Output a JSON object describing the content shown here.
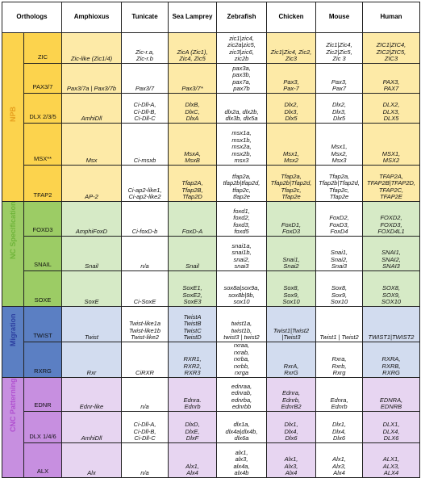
{
  "colors": {
    "npb_cat": "#fcd34d",
    "npb_row": "#fdeaa7",
    "nc_cat": "#9ccc65",
    "nc_row": "#d6eac6",
    "mig_cat": "#5b7fc3",
    "mig_row": "#d2dcef",
    "cnc_cat": "#c78fe0",
    "cnc_row": "#e7d5f1",
    "stripe": "#d9dff0",
    "npb_text": "#e6a020",
    "nc_text": "#6fb43a",
    "mig_text": "#2c3fa0",
    "cnc_text": "#b050d0"
  },
  "headers": [
    "Orthologs",
    "Amphioxus",
    "Tunicate",
    "Sea Lamprey",
    "Zebrafish",
    "Chicken",
    "Mouse",
    "Human"
  ],
  "categories": {
    "npb": "NPB",
    "nc": "NC Specification",
    "mig": "Migration",
    "cnc": "CNC Patterning"
  },
  "rows": [
    {
      "gene": "ZIC",
      "cells": [
        [
          "Zic-like (Zic1/4)"
        ],
        [
          "Zic-r.a,",
          "Zic-r.b"
        ],
        [
          "ZicA (Zic1),",
          "Zic4, Zic5"
        ],
        [
          "zic1|zic4,",
          "zic2a|zic5,",
          "zic3|zic6,",
          "zic2b"
        ],
        [
          "Zic1|Zic4, Zic2,",
          "Zic3"
        ],
        [
          "Zic1|Zic4,",
          "Zic2|Zic5,",
          "Zic 3"
        ],
        [
          "ZIC1|ZIC4,",
          "ZIC2|ZIC5,",
          "ZIC3"
        ]
      ]
    },
    {
      "gene": "PAX3/7",
      "cells": [
        [
          "Pax3/7a | Pax3/7b"
        ],
        [
          "Pax3/7"
        ],
        [
          "Pax3/7*"
        ],
        [
          "pax3a,",
          "pax3b,",
          "pax7a,",
          "pax7b"
        ],
        [
          "Pax3,",
          "Pax-7"
        ],
        [
          "Pax3,",
          "Pax7"
        ],
        [
          "PAX3,",
          "PAX7"
        ]
      ]
    },
    {
      "gene": "DLX 2/3/5",
      "cells": [
        [
          "AmhiDll"
        ],
        [
          "Ci-Dll-A,",
          "Ci-Dll-B,",
          "Ci-Dll-C"
        ],
        [
          "DlxB,",
          "DlxC,",
          "DlxA"
        ],
        [
          "dlx2a, dlx2b,",
          "dlx3b, dlx5a"
        ],
        [
          "Dlx2,",
          "Dlx3,",
          "Dlx5"
        ],
        [
          "Dlx2,",
          "Dlx3,",
          "Dlx5"
        ],
        [
          "DLX2,",
          "DLX3,",
          "DLX5"
        ]
      ]
    },
    {
      "gene": "MSX**",
      "cells": [
        [
          "Msx"
        ],
        [
          "Ci-msxb"
        ],
        [
          "MsxA,",
          "MsxB"
        ],
        [
          "msx1a,",
          "msx1b,",
          "msx2a,",
          "msx2b,",
          "msx3"
        ],
        [
          "Msx1,",
          "Msx2"
        ],
        [
          "Msx1,",
          "Msx2,",
          "Msx3"
        ],
        [
          "MSX1,",
          "MSX2"
        ]
      ]
    },
    {
      "gene": "TFAP2",
      "cells": [
        [
          "AP-2"
        ],
        [
          "Ci-ap2-like1,",
          "Ci-ap2-like2"
        ],
        [
          "Tfap2A,",
          "Tfap2B,",
          "Tfap2D"
        ],
        [
          "tfap2a,",
          "tfap2b|tfap2d,",
          "tfap2c,",
          "tfap2e"
        ],
        [
          "Tfap2a,",
          "Tfap2b|Tfap2d,",
          "Tfap2c,",
          "Tfap2e"
        ],
        [
          "Tfap2a,",
          "Tfap2b|Tfap2d,",
          "Tfap2c,",
          "Tfap2e"
        ],
        [
          "TFAP2A,",
          "TFAP2B|TFAP2D,",
          "TFAP2C,",
          "TFAP2E"
        ]
      ]
    },
    {
      "gene": "FOXD3",
      "cells": [
        [
          "AmphiFoxD"
        ],
        [
          "Ci-foxD-b"
        ],
        [
          "FoxD-A"
        ],
        [
          "foxd1,",
          "foxd2,",
          "foxd3,",
          "foxd5"
        ],
        [
          "FoxD1,",
          "FoxD3"
        ],
        [
          "FoxD2,",
          "FoxD3,",
          "FoxD4"
        ],
        [
          "FOXD2,",
          "FOXD3,",
          "FOXD4L1"
        ]
      ]
    },
    {
      "gene": "SNAIL",
      "cells": [
        [
          "Snail"
        ],
        [
          "n/a"
        ],
        [
          "Snail"
        ],
        [
          "snai1a,",
          "snai1b,",
          "snai2,",
          "snai3"
        ],
        [
          "Snai1,",
          "Snai2"
        ],
        [
          "Snai1,",
          "Snai2,",
          "Snai3"
        ],
        [
          "SNAI1,",
          "SNAI2,",
          "SNAI3"
        ]
      ]
    },
    {
      "gene": "SOXE",
      "cells": [
        [
          "SoxE"
        ],
        [
          "Ci-SoxE"
        ],
        [
          "SoxE1,",
          "SoxE2,",
          "SoxE3"
        ],
        [
          "sox8a|sox9a,",
          "sox8b|9b,",
          "sox10"
        ],
        [
          "Sox8,",
          "Sox9,",
          "Sox10"
        ],
        [
          "Sox8,",
          "Sox9,",
          "Sox10"
        ],
        [
          "SOX8,",
          "SOX9,",
          "SOX10"
        ]
      ]
    },
    {
      "gene": "TWIST",
      "cells": [
        [
          "Twist"
        ],
        [
          "Twist-like1a",
          "Twist-like1b",
          "Twist-like2"
        ],
        [
          "TwistA",
          "TwistB",
          "TwistC",
          "TwistD"
        ],
        [
          "twist1a,",
          "twist1b,",
          "twist3 | twist2"
        ],
        [
          "Twist1|Twist2",
          "|Twist3"
        ],
        [
          "Twist1 | Twist2"
        ],
        [
          "TWIST1|TWIST2"
        ]
      ]
    },
    {
      "gene": "RXRG",
      "cells": [
        [
          "Rxr"
        ],
        [
          "CiRXR"
        ],
        [
          "RXR1,",
          "RXR2,",
          "RXR3"
        ],
        [
          "rxraa,",
          "rxrab,",
          "rxrba,",
          "rxrbb,",
          "rxrga"
        ],
        [
          "RxrA,",
          "RxrG"
        ],
        [
          "Rxra,",
          "Rxrb,",
          "Rxrg"
        ],
        [
          "RXRA,",
          "RXRB,",
          "RXRG"
        ]
      ]
    },
    {
      "gene": "EDNR",
      "cells": [
        [
          "Ednr-like"
        ],
        [
          "n/a"
        ],
        [
          "Ednra.",
          "Ednrb"
        ],
        [
          "ednraa,",
          "ednrab,",
          "ednrba,",
          "ednrbb"
        ],
        [
          "Ednra,",
          "Ednrb,",
          "EdnrB2"
        ],
        [
          "Ednra,",
          "Ednrb"
        ],
        [
          "EDNRA,",
          "EDNRB"
        ]
      ]
    },
    {
      "gene": "DLX 1/4/6",
      "cells": [
        [
          "AmhiDll"
        ],
        [
          "Ci-Dll-A,",
          "Ci-Dll-B,",
          "Ci-Dll-C"
        ],
        [
          "DlxD,",
          "DlxE,",
          "DlxF"
        ],
        [
          "dlx1a,",
          "dlx4a|dlx4b,",
          "dlx6a"
        ],
        [
          "Dlx1,",
          "Dlx4,",
          "Dlx6"
        ],
        [
          "Dlx1,",
          "Dlx4,",
          "Dlx6"
        ],
        [
          "DLX1,",
          "DLX4,",
          "DLX6"
        ]
      ]
    },
    {
      "gene": "ALX",
      "cells": [
        [
          "Alx"
        ],
        [
          "n/a"
        ],
        [
          "Alx1,",
          "Alx4"
        ],
        [
          "alx1,",
          "alx3,",
          "alx4a,",
          "alx4b"
        ],
        [
          "Alx1,",
          "Alx3,",
          "Alx4"
        ],
        [
          "Alx1,",
          "Alx3,",
          "Alx4"
        ],
        [
          "ALX1,",
          "ALX3,",
          "ALX4"
        ]
      ]
    }
  ]
}
